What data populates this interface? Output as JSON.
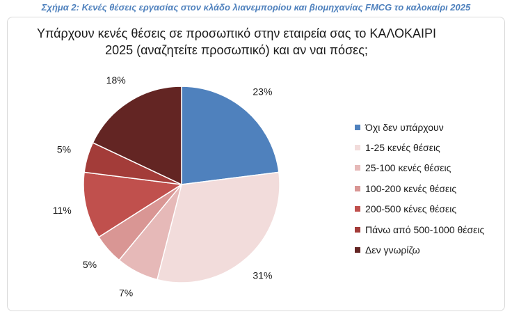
{
  "caption": "Σχήμα 2: Κενές θέσεις εργασίας στον κλάδο λιανεμπορίου και βιομηχανίας FMCG το καλοκαίρι 2025",
  "chart_data": {
    "type": "pie",
    "title_lines": [
      "Υπάρχουν κενές θέσεις σε προσωπικό στην εταιρεία σας το ΚΑΛΟΚΑΙΡΙ",
      "2025 (αναζητείτε προσωπικό) και αν ναι πόσες;"
    ],
    "legend_position": "right",
    "slices": [
      {
        "label": "Όχι δεν υπάρχουν",
        "value": 23,
        "display": "23%",
        "color": "#4f81bd"
      },
      {
        "label": "1-25 κενές θέσεις",
        "value": 31,
        "display": "31%",
        "color": "#f2dcdb"
      },
      {
        "label": "25-100 κενές θέσεις",
        "value": 7,
        "display": "7%",
        "color": "#e6b9b8"
      },
      {
        "label": "100-200 κενές θέσεις",
        "value": 5,
        "display": "5%",
        "color": "#d99694"
      },
      {
        "label": "200-500 κένες θέσεις",
        "value": 11,
        "display": "11%",
        "color": "#c0504d"
      },
      {
        "label": "Πάνω από 500-1000 θέσεις",
        "value": 5,
        "display": "5%",
        "color": "#a33c39"
      },
      {
        "label": "Δεν γνωρίζω",
        "value": 18,
        "display": "18%",
        "color": "#632523"
      }
    ]
  }
}
